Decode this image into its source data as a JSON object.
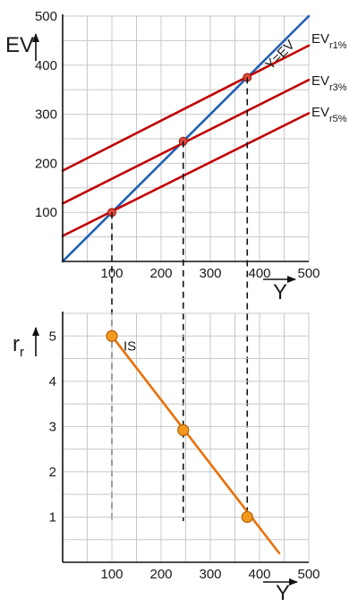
{
  "chart_data": [
    {
      "id": "top",
      "type": "line",
      "xlabel": "Y",
      "ylabel": "EV",
      "xlim": [
        0,
        500
      ],
      "ylim": [
        0,
        500
      ],
      "x_ticks": [
        "100",
        "200",
        "300",
        "400",
        "500"
      ],
      "y_ticks": [
        "100",
        "200",
        "300",
        "400",
        "500"
      ],
      "grid": true,
      "series": [
        {
          "name": "Y=EV",
          "color": "#1f5fb4",
          "x": [
            0,
            500
          ],
          "y": [
            0,
            500
          ]
        },
        {
          "name": "EV",
          "sub": "r1%",
          "color": "#c00000",
          "x": [
            0,
            500
          ],
          "y": [
            185,
            440
          ]
        },
        {
          "name": "EV",
          "sub": "r3%",
          "color": "#c00000",
          "x": [
            0,
            500
          ],
          "y": [
            118,
            370
          ]
        },
        {
          "name": "EV",
          "sub": "r5%",
          "color": "#c00000",
          "x": [
            0,
            500
          ],
          "y": [
            52,
            302
          ]
        }
      ],
      "points": [
        {
          "x": 100,
          "y": 100,
          "color": "#e0463a"
        },
        {
          "x": 245,
          "y": 245,
          "color": "#e0463a"
        },
        {
          "x": 375,
          "y": 375,
          "color": "#e0463a"
        }
      ]
    },
    {
      "id": "bottom",
      "type": "line",
      "xlabel": "Y",
      "ylabel": "r",
      "ylabel_sub": "r",
      "xlim": [
        0,
        500
      ],
      "ylim": [
        0,
        5.5
      ],
      "x_ticks": [
        "100",
        "200",
        "300",
        "400",
        "500"
      ],
      "y_ticks": [
        "1",
        "2",
        "3",
        "4",
        "5"
      ],
      "grid": true,
      "series": [
        {
          "name": "IS",
          "color": "#e8700a",
          "x": [
            100,
            440
          ],
          "y": [
            5,
            0.2
          ]
        }
      ],
      "points": [
        {
          "x": 100,
          "y": 5,
          "color": "#f39a1e"
        },
        {
          "x": 245,
          "y": 2.92,
          "color": "#f39a1e"
        },
        {
          "x": 375,
          "y": 1,
          "color": "#f39a1e"
        }
      ]
    }
  ],
  "guides": [
    100,
    245,
    375
  ]
}
